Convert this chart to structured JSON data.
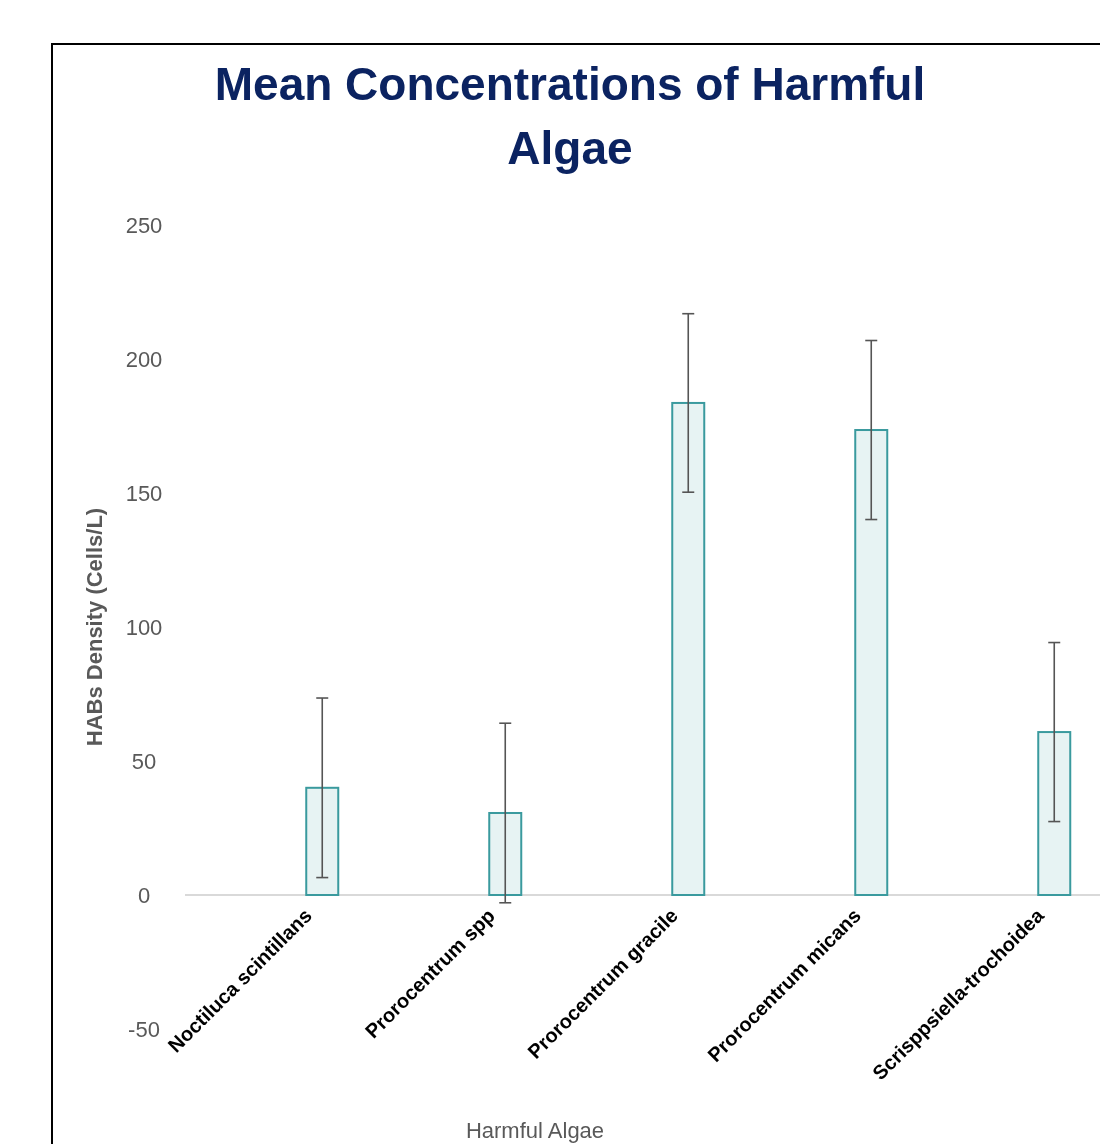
{
  "chart_data": {
    "type": "bar",
    "title": "Mean Concentrations of Harmful Algae",
    "xlabel": "Harmful Algae",
    "ylabel": "HABs Density (Cells/L)",
    "categories": [
      "Noctiluca scintillans",
      "Prorocentrum spp",
      "Prorocentrum gracile",
      "Prorocentrum micans",
      "Scrisppsiella-trochoidea"
    ],
    "values": [
      40,
      30.6,
      183.6,
      173.5,
      60.8
    ],
    "errors": [
      33.5,
      33.5,
      33.3,
      33.4,
      33.4
    ],
    "color": "#3a9a9e",
    "ylim": [
      -50,
      250
    ],
    "yticks": [
      -50,
      0,
      50,
      100,
      150,
      200,
      250
    ]
  }
}
